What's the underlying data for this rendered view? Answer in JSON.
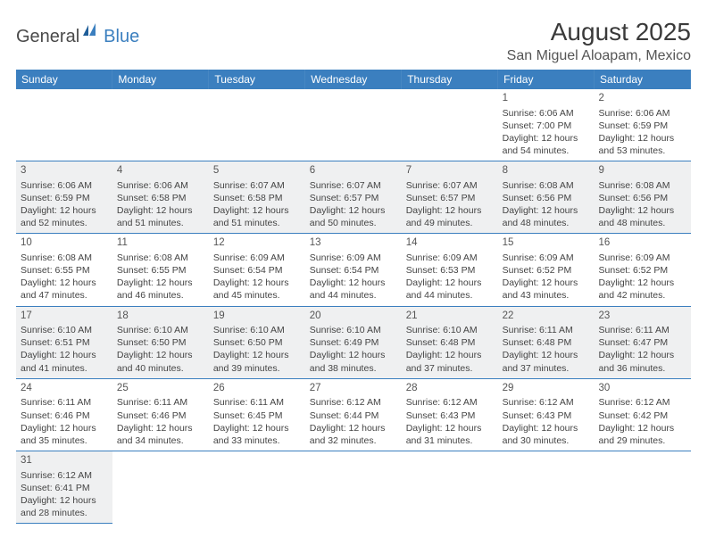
{
  "logo": {
    "text1": "General",
    "text2": "Blue"
  },
  "title": "August 2025",
  "location": "San Miguel Aloapam, Mexico",
  "colors": {
    "header_bg": "#3b7fbf",
    "header_fg": "#ffffff",
    "row_alt_bg": "#eff0f1",
    "border": "#3b7fbf",
    "text": "#444444"
  },
  "typography": {
    "title_fontsize": 28,
    "location_fontsize": 16,
    "dayheader_fontsize": 12,
    "cell_fontsize": 10.5
  },
  "dayHeaders": [
    "Sunday",
    "Monday",
    "Tuesday",
    "Wednesday",
    "Thursday",
    "Friday",
    "Saturday"
  ],
  "cells": [
    [
      null,
      null,
      null,
      null,
      null,
      {
        "d": "1",
        "sr": "6:06 AM",
        "ss": "7:00 PM",
        "dl": "12 hours and 54 minutes."
      },
      {
        "d": "2",
        "sr": "6:06 AM",
        "ss": "6:59 PM",
        "dl": "12 hours and 53 minutes."
      }
    ],
    [
      {
        "d": "3",
        "sr": "6:06 AM",
        "ss": "6:59 PM",
        "dl": "12 hours and 52 minutes."
      },
      {
        "d": "4",
        "sr": "6:06 AM",
        "ss": "6:58 PM",
        "dl": "12 hours and 51 minutes."
      },
      {
        "d": "5",
        "sr": "6:07 AM",
        "ss": "6:58 PM",
        "dl": "12 hours and 51 minutes."
      },
      {
        "d": "6",
        "sr": "6:07 AM",
        "ss": "6:57 PM",
        "dl": "12 hours and 50 minutes."
      },
      {
        "d": "7",
        "sr": "6:07 AM",
        "ss": "6:57 PM",
        "dl": "12 hours and 49 minutes."
      },
      {
        "d": "8",
        "sr": "6:08 AM",
        "ss": "6:56 PM",
        "dl": "12 hours and 48 minutes."
      },
      {
        "d": "9",
        "sr": "6:08 AM",
        "ss": "6:56 PM",
        "dl": "12 hours and 48 minutes."
      }
    ],
    [
      {
        "d": "10",
        "sr": "6:08 AM",
        "ss": "6:55 PM",
        "dl": "12 hours and 47 minutes."
      },
      {
        "d": "11",
        "sr": "6:08 AM",
        "ss": "6:55 PM",
        "dl": "12 hours and 46 minutes."
      },
      {
        "d": "12",
        "sr": "6:09 AM",
        "ss": "6:54 PM",
        "dl": "12 hours and 45 minutes."
      },
      {
        "d": "13",
        "sr": "6:09 AM",
        "ss": "6:54 PM",
        "dl": "12 hours and 44 minutes."
      },
      {
        "d": "14",
        "sr": "6:09 AM",
        "ss": "6:53 PM",
        "dl": "12 hours and 44 minutes."
      },
      {
        "d": "15",
        "sr": "6:09 AM",
        "ss": "6:52 PM",
        "dl": "12 hours and 43 minutes."
      },
      {
        "d": "16",
        "sr": "6:09 AM",
        "ss": "6:52 PM",
        "dl": "12 hours and 42 minutes."
      }
    ],
    [
      {
        "d": "17",
        "sr": "6:10 AM",
        "ss": "6:51 PM",
        "dl": "12 hours and 41 minutes."
      },
      {
        "d": "18",
        "sr": "6:10 AM",
        "ss": "6:50 PM",
        "dl": "12 hours and 40 minutes."
      },
      {
        "d": "19",
        "sr": "6:10 AM",
        "ss": "6:50 PM",
        "dl": "12 hours and 39 minutes."
      },
      {
        "d": "20",
        "sr": "6:10 AM",
        "ss": "6:49 PM",
        "dl": "12 hours and 38 minutes."
      },
      {
        "d": "21",
        "sr": "6:10 AM",
        "ss": "6:48 PM",
        "dl": "12 hours and 37 minutes."
      },
      {
        "d": "22",
        "sr": "6:11 AM",
        "ss": "6:48 PM",
        "dl": "12 hours and 37 minutes."
      },
      {
        "d": "23",
        "sr": "6:11 AM",
        "ss": "6:47 PM",
        "dl": "12 hours and 36 minutes."
      }
    ],
    [
      {
        "d": "24",
        "sr": "6:11 AM",
        "ss": "6:46 PM",
        "dl": "12 hours and 35 minutes."
      },
      {
        "d": "25",
        "sr": "6:11 AM",
        "ss": "6:46 PM",
        "dl": "12 hours and 34 minutes."
      },
      {
        "d": "26",
        "sr": "6:11 AM",
        "ss": "6:45 PM",
        "dl": "12 hours and 33 minutes."
      },
      {
        "d": "27",
        "sr": "6:12 AM",
        "ss": "6:44 PM",
        "dl": "12 hours and 32 minutes."
      },
      {
        "d": "28",
        "sr": "6:12 AM",
        "ss": "6:43 PM",
        "dl": "12 hours and 31 minutes."
      },
      {
        "d": "29",
        "sr": "6:12 AM",
        "ss": "6:43 PM",
        "dl": "12 hours and 30 minutes."
      },
      {
        "d": "30",
        "sr": "6:12 AM",
        "ss": "6:42 PM",
        "dl": "12 hours and 29 minutes."
      }
    ],
    [
      {
        "d": "31",
        "sr": "6:12 AM",
        "ss": "6:41 PM",
        "dl": "12 hours and 28 minutes."
      },
      null,
      null,
      null,
      null,
      null,
      null
    ]
  ],
  "labels": {
    "sunrise": "Sunrise:",
    "sunset": "Sunset:",
    "daylight": "Daylight:"
  }
}
